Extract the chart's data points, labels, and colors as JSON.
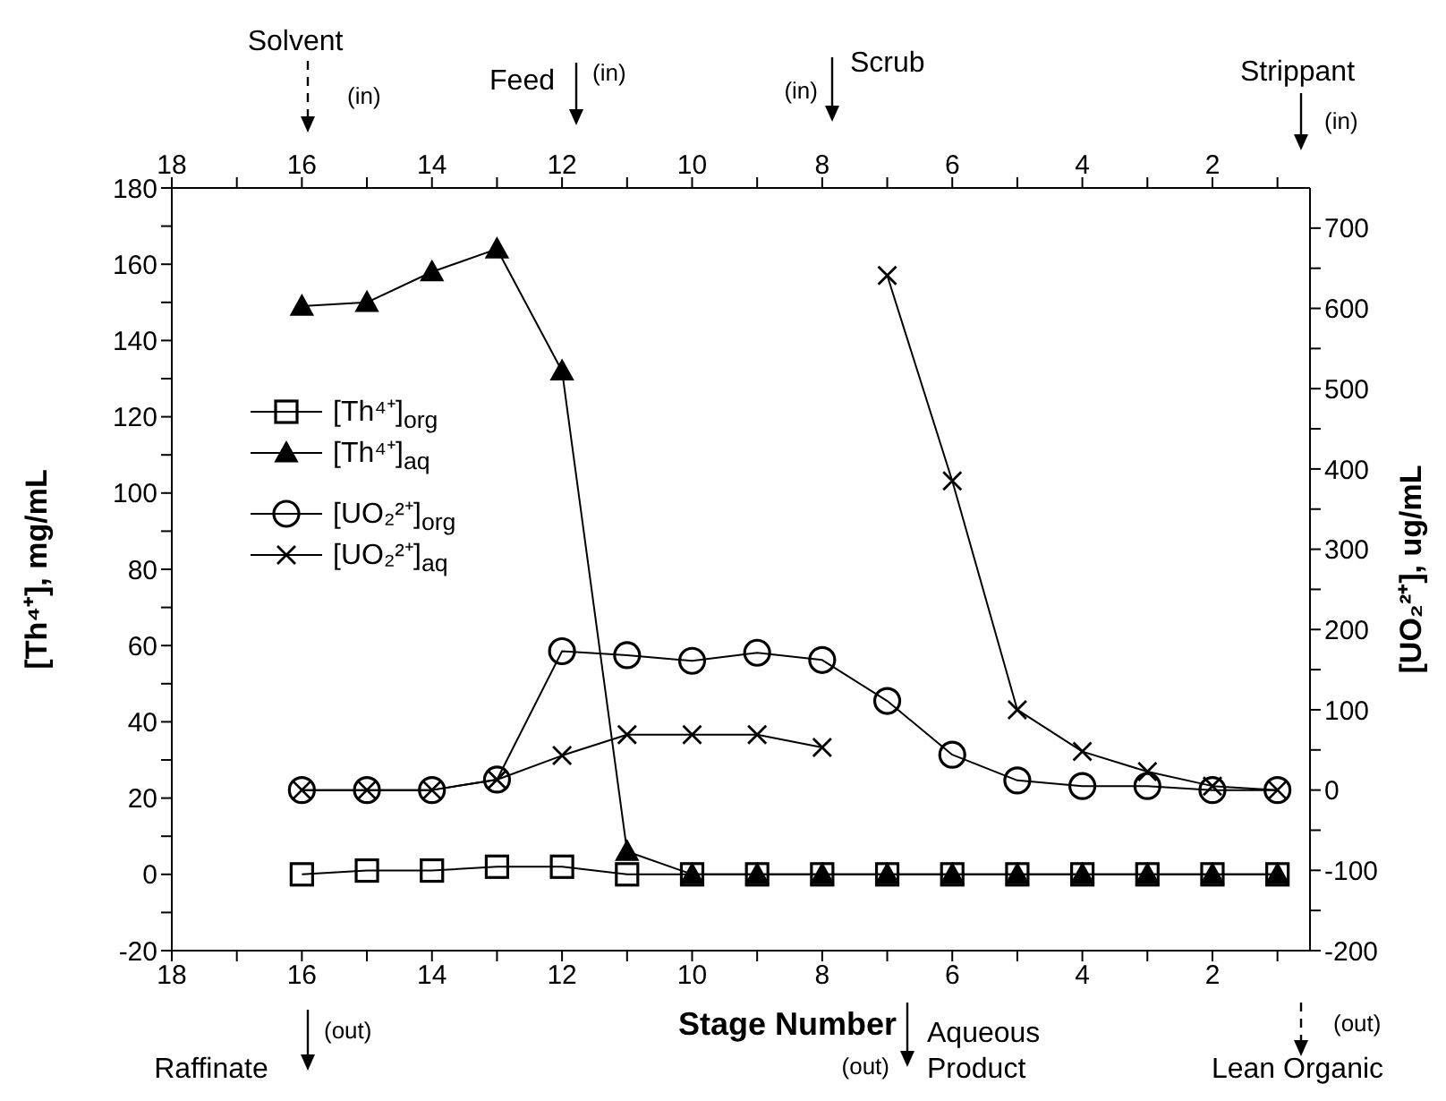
{
  "chart_data": {
    "type": "line",
    "xlabel": "Stage Number",
    "ylabel": "[Th⁴⁺], mg/mL",
    "y2label": "[UO₂²⁺], ug/mL",
    "x": [
      16,
      15,
      14,
      13,
      12,
      11,
      10,
      9,
      8,
      7,
      6,
      5,
      4,
      3,
      2,
      1
    ],
    "series": [
      {
        "name": "[Th⁴⁺]$_{org}$",
        "color": "#000000",
        "marker": "square",
        "values": [
          0,
          1,
          1,
          2,
          2,
          0,
          0,
          0,
          0,
          0,
          0,
          0,
          0,
          0,
          0,
          0
        ]
      },
      {
        "name": "[Th⁴⁺]$_{aq}$",
        "color": "#000000",
        "marker": "triangle",
        "values": [
          149,
          150,
          158,
          164,
          132,
          6,
          0,
          0,
          0,
          0,
          0,
          0,
          0,
          0,
          0,
          0
        ]
      },
      {
        "name": "[UO₂²⁺]$_{org}$",
        "color": "#000000",
        "marker": "circle",
        "axis": "y2",
        "values": [
          0,
          0,
          0,
          13,
          173,
          168,
          161,
          171,
          162,
          111,
          44,
          12,
          5,
          5,
          0,
          0
        ]
      },
      {
        "name": "[UO₂²⁺]$_{aq}$",
        "color": "#000000",
        "marker": "cross",
        "axis": "y2",
        "values": [
          0,
          0,
          0,
          13,
          43,
          69,
          69,
          69,
          53,
          null,
          null,
          null,
          null,
          null,
          null,
          null
        ]
      },
      {
        "color": "#000000",
        "marker": "cross",
        "axis": "y2",
        "values": [
          null,
          null,
          null,
          null,
          null,
          null,
          null,
          null,
          null,
          641,
          385,
          100,
          48,
          23,
          5,
          0
        ]
      }
    ],
    "xlim": [
      18,
      0.5
    ],
    "xticks": [
      18,
      {
        "value": 17,
        "label": null
      },
      16,
      {
        "value": 15,
        "label": null
      },
      14,
      {
        "value": 13,
        "label": null
      },
      12,
      {
        "value": 11,
        "label": null
      },
      10,
      {
        "value": 9,
        "label": null
      },
      8,
      {
        "value": 7,
        "label": null
      },
      6,
      {
        "value": 5,
        "label": null
      },
      4,
      {
        "value": 3,
        "label": null
      },
      2,
      {
        "value": 1,
        "label": null
      }
    ],
    "x2lim": [
      18,
      0.5
    ],
    "x2ticks": [
      18,
      {
        "value": 17,
        "label": null
      },
      16,
      {
        "value": 15,
        "label": null
      },
      14,
      {
        "value": 13,
        "label": null
      },
      12,
      {
        "value": 11,
        "label": null
      },
      10,
      {
        "value": 9,
        "label": null
      },
      8,
      {
        "value": 7,
        "label": null
      },
      6,
      {
        "value": 5,
        "label": null
      },
      4,
      {
        "value": 3,
        "label": null
      },
      2,
      {
        "value": 1,
        "label": null
      }
    ],
    "ylim": [
      -20,
      180
    ],
    "yticks": [
      -20,
      {
        "value": -10,
        "label": null
      },
      0,
      {
        "value": 10,
        "label": null
      },
      20,
      {
        "value": 30,
        "label": null
      },
      40,
      {
        "value": 50,
        "label": null
      },
      60,
      {
        "value": 70,
        "label": null
      },
      80,
      {
        "value": 90,
        "label": null
      },
      100,
      {
        "value": 110,
        "label": null
      },
      120,
      {
        "value": 130,
        "label": null
      },
      140,
      {
        "value": 150,
        "label": null
      },
      160,
      {
        "value": 170,
        "label": null
      },
      180
    ],
    "y2lim": [
      -200,
      750
    ],
    "y2ticks": [
      -200,
      {
        "value": -150,
        "label": null
      },
      -100,
      {
        "value": -50,
        "label": null
      },
      0,
      {
        "value": 50,
        "label": null
      },
      100,
      {
        "value": 150,
        "label": null
      },
      200,
      {
        "value": 250,
        "label": null
      },
      300,
      {
        "value": 350,
        "label": null
      },
      400,
      {
        "value": 450,
        "label": null
      },
      500,
      {
        "value": 550,
        "label": null
      },
      600,
      {
        "value": 650,
        "label": null
      },
      700
    ],
    "grid": false,
    "legend": "left",
    "line_style": "solid",
    "annotations": [
      "Solvent",
      "(in)",
      "Feed",
      "(in)",
      "Scrub",
      "(in)",
      "Strippant",
      "(in)",
      "Raffinate",
      "(out)",
      "Aqueous Product",
      "(out)",
      "Lean Organic",
      "(out)"
    ]
  }
}
